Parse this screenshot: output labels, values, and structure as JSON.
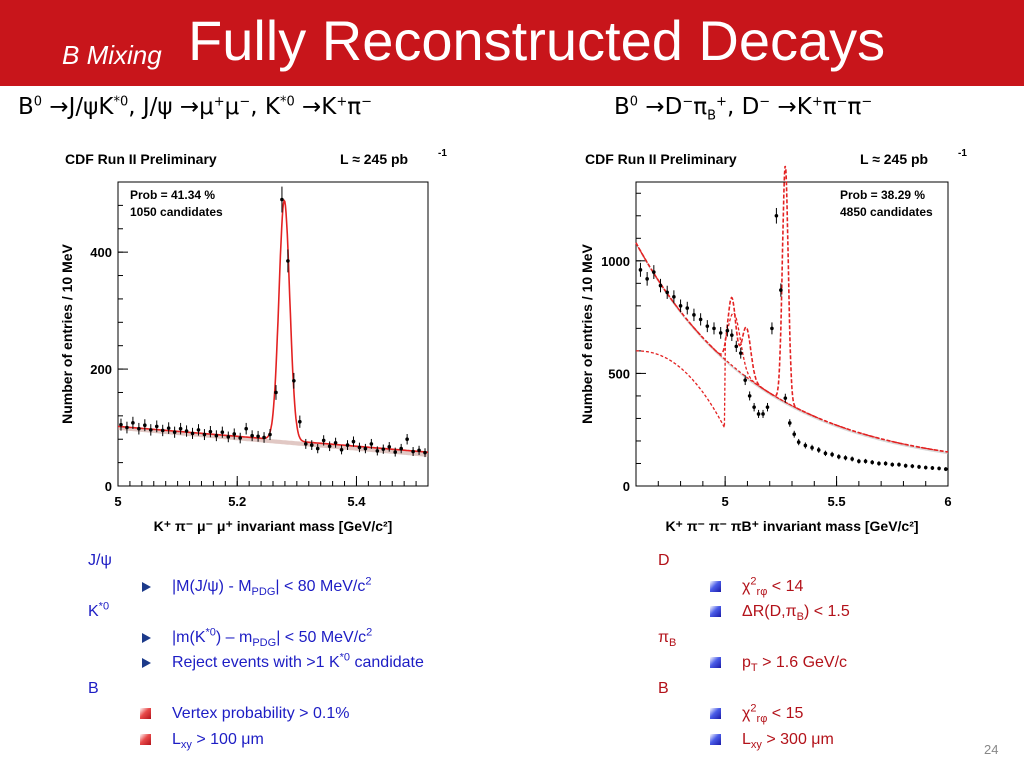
{
  "header": {
    "subtitle": "B Mixing",
    "title": "Fully Reconstructed Decays"
  },
  "decays": {
    "left": {
      "b": "B",
      "b_sup": "0",
      "arrow1": " →J/ψK",
      "ks1_sup": "*0",
      "mid": ", J/ψ →μ",
      "mu_p": "+",
      "mu2": "μ",
      "mu_m": "−",
      "mid2": ", K",
      "ks2_sup": "*0",
      "arrow2": " →K",
      "k_sup": "+",
      "pi": "π",
      "pi_sup": "−"
    },
    "right": {
      "b": "B",
      "b_sup": "0",
      "arrow1": " →D",
      "d_sup": "−",
      "pi": "π",
      "pi_sub": "B",
      "pi_sup": "+",
      "mid": ", D",
      "d2_sup": "−",
      "arrow2": " →K",
      "k_sup": "+",
      "pi2": "π",
      "pi2_sup": "−",
      "pi3": "π",
      "pi3_sup": "−"
    }
  },
  "chart_data": [
    {
      "type": "scatter",
      "header_left": "CDF Run II Preliminary",
      "header_right": "L ≈ 245 pb",
      "header_right_sup": "-1",
      "box_line1": "Prob = 41.34 %",
      "box_line2": "1050 candidates",
      "xlabel": "K⁺ π⁻ μ⁻ μ⁺ invariant mass [GeV/c²]",
      "ylabel": "Number of entries / 10 MeV",
      "xlim": [
        5.0,
        5.52
      ],
      "ylim": [
        0,
        520
      ],
      "xticks": [
        "5",
        "5.2",
        "5.4"
      ],
      "yticks": [
        "0",
        "200",
        "400"
      ],
      "fit_color": "#e32222",
      "bkg_color": "#c99a93",
      "data_x": [
        5.005,
        5.015,
        5.025,
        5.035,
        5.045,
        5.055,
        5.065,
        5.075,
        5.085,
        5.095,
        5.105,
        5.115,
        5.125,
        5.135,
        5.145,
        5.155,
        5.165,
        5.175,
        5.185,
        5.195,
        5.205,
        5.215,
        5.225,
        5.235,
        5.245,
        5.255,
        5.265,
        5.275,
        5.285,
        5.295,
        5.305,
        5.315,
        5.325,
        5.335,
        5.345,
        5.355,
        5.365,
        5.375,
        5.385,
        5.395,
        5.405,
        5.415,
        5.425,
        5.435,
        5.445,
        5.455,
        5.465,
        5.475,
        5.485,
        5.495,
        5.505,
        5.515
      ],
      "data_y": [
        105,
        100,
        108,
        98,
        104,
        96,
        102,
        95,
        99,
        92,
        98,
        94,
        90,
        96,
        88,
        93,
        86,
        92,
        84,
        89,
        82,
        98,
        86,
        85,
        83,
        88,
        160,
        490,
        385,
        180,
        110,
        72,
        70,
        64,
        78,
        68,
        74,
        62,
        70,
        76,
        66,
        64,
        72,
        60,
        63,
        67,
        58,
        64,
        80,
        59,
        61,
        57
      ]
    },
    {
      "type": "scatter",
      "header_left": "CDF Run II Preliminary",
      "header_right": "L ≈ 245 pb",
      "header_right_sup": "-1",
      "box_line1": "Prob = 38.29 %",
      "box_line2": "4850 candidates",
      "xlabel": "K⁺ π⁻ π⁻ πB⁺ invariant mass [GeV/c²]",
      "ylabel": "Number of entries / 10 MeV",
      "xlim": [
        4.6,
        6.0
      ],
      "ylim": [
        0,
        1350
      ],
      "xticks": [
        "5",
        "5.5",
        "6"
      ],
      "yticks": [
        "0",
        "500",
        "1000"
      ],
      "fit_color": "#e32222",
      "bkg_color": "#b8b8b8",
      "data_x": [
        4.62,
        4.65,
        4.68,
        4.71,
        4.74,
        4.77,
        4.8,
        4.83,
        4.86,
        4.89,
        4.92,
        4.95,
        4.98,
        5.01,
        5.03,
        5.05,
        5.07,
        5.09,
        5.11,
        5.13,
        5.15,
        5.17,
        5.19,
        5.21,
        5.23,
        5.25,
        5.27,
        5.29,
        5.31,
        5.33,
        5.36,
        5.39,
        5.42,
        5.45,
        5.48,
        5.51,
        5.54,
        5.57,
        5.6,
        5.63,
        5.66,
        5.69,
        5.72,
        5.75,
        5.78,
        5.81,
        5.84,
        5.87,
        5.9,
        5.93,
        5.96,
        5.99
      ],
      "data_y": [
        960,
        920,
        950,
        890,
        860,
        840,
        800,
        790,
        760,
        740,
        710,
        700,
        680,
        690,
        670,
        620,
        590,
        470,
        400,
        350,
        320,
        320,
        350,
        700,
        1200,
        870,
        390,
        280,
        230,
        195,
        180,
        170,
        160,
        145,
        140,
        130,
        125,
        120,
        110,
        110,
        105,
        100,
        100,
        95,
        95,
        90,
        88,
        85,
        82,
        80,
        78,
        75
      ]
    }
  ],
  "requirements": {
    "left": {
      "jpsi_head": "J/ψ",
      "jpsi_cut": {
        "a": "|M(J/ψ) - M",
        "sub": "PDG",
        "b": "| < 80 MeV/c",
        "sup": "2"
      },
      "kstar_head": "K",
      "kstar_head_sup": "*0",
      "kstar_cut1": {
        "a": "|m(K",
        "sup1": "*0",
        "b": ") – m",
        "sub": "PDG",
        "c": "| < 50 MeV/c",
        "sup2": "2"
      },
      "kstar_cut2": {
        "a": "Reject events with >1 K",
        "sup": "*0",
        "b": " candidate"
      },
      "b_head": "B",
      "b_cut1": "Vertex probability > 0.1%",
      "b_cut2": {
        "a": "L",
        "sub": "xy",
        "b": " > 100 μm"
      }
    },
    "right": {
      "d_head": "D",
      "d_cut1": {
        "a": "χ",
        "sup": "2",
        "sub": "rφ",
        "b": " < 14"
      },
      "d_cut2": {
        "a": "ΔR(D,π",
        "sub": "B",
        "b": ") < 1.5"
      },
      "pib_head": "π",
      "pib_head_sub": "B",
      "pib_cut": {
        "a": "p",
        "sub": "T",
        "b": " > 1.6 GeV/c"
      },
      "b_head": "B",
      "b_cut1": {
        "a": "χ",
        "sup": "2",
        "sub": "rφ",
        "b": " < 15"
      },
      "b_cut2": {
        "a": "L",
        "sub": "xy",
        "b": " > 300 μm"
      }
    }
  },
  "page_number": "24"
}
